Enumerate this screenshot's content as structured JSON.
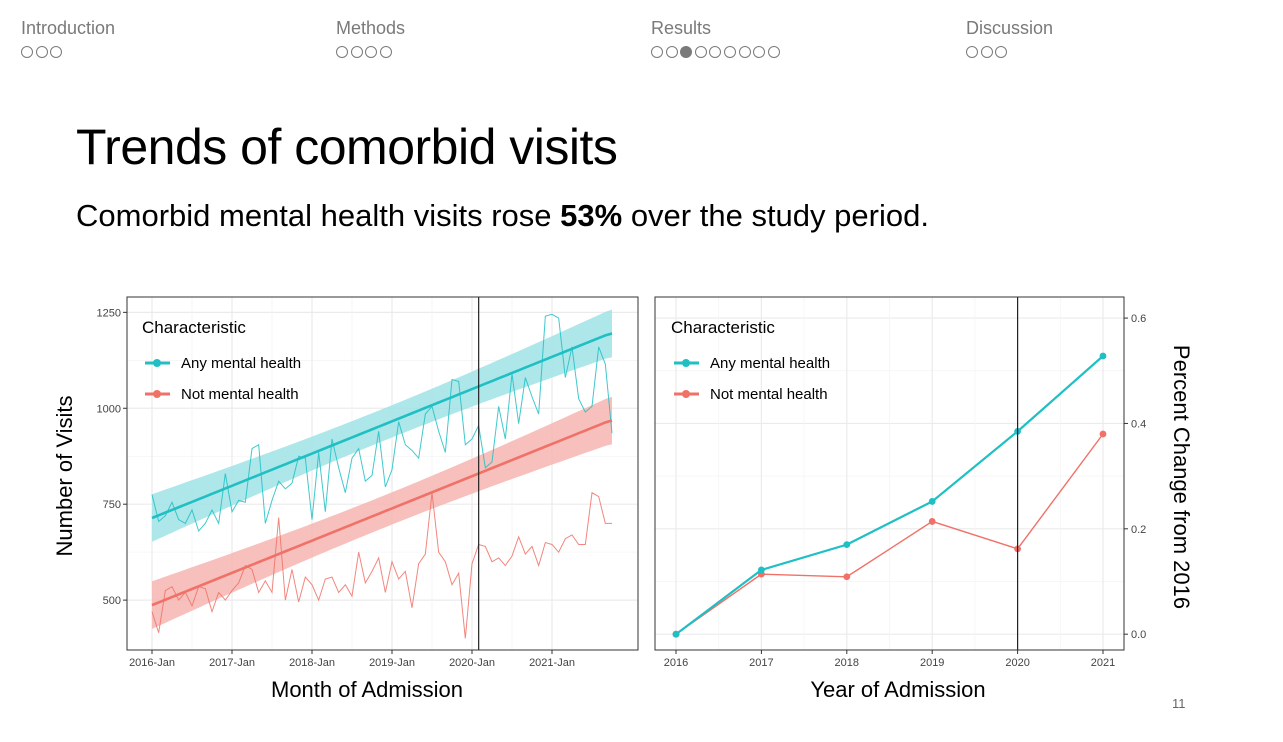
{
  "nav": [
    {
      "label": "Introduction",
      "dots": 3,
      "active": -1
    },
    {
      "label": "Methods",
      "dots": 4,
      "active": -1
    },
    {
      "label": "Results",
      "dots": 9,
      "active": 2
    },
    {
      "label": "Discussion",
      "dots": 3,
      "active": -1
    }
  ],
  "slide": {
    "title": "Trends of comorbid visits",
    "subtitle_pre": "Comorbid mental health visits rose ",
    "subtitle_bold": "53%",
    "subtitle_post": " over the study period.",
    "page_number": "11"
  },
  "colors": {
    "any": "#1fbfc4",
    "not": "#f07167",
    "ribbon_any": "#9fe3e5",
    "ribbon_not": "#f6b5b0",
    "grid": "#ebebeb",
    "frame": "#333333"
  },
  "chart_data": [
    {
      "type": "line",
      "title": "",
      "xlabel": "Month of Admission",
      "ylabel": "Number of Visits",
      "legend_title": "Characteristic",
      "legend_position": "top-left",
      "x_tick_labels": [
        "2016-Jan",
        "2017-Jan",
        "2018-Jan",
        "2019-Jan",
        "2020-Jan",
        "2021-Jan"
      ],
      "y_ticks": [
        500,
        750,
        1000,
        1250
      ],
      "xlim": [
        0,
        71
      ],
      "ylim": [
        370,
        1290
      ],
      "vline_month": 49,
      "series": [
        {
          "name": "Any mental health",
          "values": [
            775,
            705,
            720,
            755,
            710,
            700,
            735,
            680,
            700,
            735,
            700,
            830,
            730,
            760,
            755,
            895,
            905,
            700,
            760,
            810,
            790,
            805,
            875,
            870,
            710,
            885,
            730,
            920,
            845,
            780,
            870,
            895,
            810,
            825,
            940,
            795,
            840,
            965,
            905,
            890,
            870,
            985,
            1005,
            940,
            885,
            1075,
            1070,
            905,
            920,
            955,
            845,
            860,
            1005,
            920,
            1090,
            960,
            1080,
            1030,
            985,
            1240,
            1245,
            1235,
            1080,
            1160,
            1025,
            990,
            1005,
            1160,
            1115,
            935
          ],
          "smooth": [
            714,
            721,
            728,
            735,
            742,
            749,
            756,
            763,
            770,
            777,
            784,
            791,
            798,
            805,
            812,
            819,
            826,
            833,
            840,
            847,
            854,
            861,
            868,
            875,
            882,
            889,
            896,
            903,
            910,
            917,
            924,
            931,
            938,
            945,
            952,
            959,
            966,
            973,
            980,
            987,
            994,
            1001,
            1008,
            1015,
            1022,
            1029,
            1036,
            1043,
            1050,
            1057,
            1064,
            1071,
            1078,
            1085,
            1092,
            1099,
            1106,
            1113,
            1120,
            1127,
            1134,
            1141,
            1148,
            1155,
            1162,
            1169,
            1176,
            1183,
            1190,
            1195
          ]
        },
        {
          "name": "Not mental health",
          "values": [
            470,
            415,
            525,
            535,
            500,
            520,
            485,
            535,
            530,
            470,
            520,
            500,
            525,
            545,
            590,
            580,
            520,
            550,
            520,
            715,
            500,
            580,
            495,
            560,
            540,
            500,
            555,
            560,
            520,
            540,
            510,
            625,
            545,
            575,
            610,
            520,
            600,
            555,
            575,
            480,
            595,
            620,
            780,
            625,
            600,
            540,
            570,
            400,
            595,
            645,
            640,
            600,
            610,
            590,
            615,
            665,
            620,
            640,
            590,
            650,
            645,
            625,
            660,
            670,
            645,
            645,
            780,
            770,
            700,
            700
          ],
          "smooth": [
            487,
            494,
            501,
            508,
            515,
            522,
            529,
            536,
            543,
            550,
            557,
            564,
            571,
            578,
            585,
            592,
            599,
            606,
            613,
            620,
            627,
            634,
            641,
            648,
            655,
            662,
            669,
            676,
            683,
            690,
            697,
            704,
            711,
            718,
            725,
            732,
            739,
            746,
            753,
            760,
            767,
            774,
            781,
            788,
            795,
            802,
            809,
            816,
            823,
            830,
            837,
            844,
            851,
            858,
            865,
            872,
            879,
            886,
            893,
            900,
            907,
            914,
            921,
            928,
            935,
            942,
            949,
            956,
            963,
            968
          ]
        }
      ]
    },
    {
      "type": "line",
      "title": "",
      "xlabel": "Year of Admission",
      "ylabel": "Percent Change from 2016",
      "legend_title": "Characteristic",
      "legend_position": "top-left",
      "x": [
        2016,
        2017,
        2018,
        2019,
        2020,
        2021
      ],
      "y_ticks": [
        0.0,
        0.2,
        0.4,
        0.6
      ],
      "y_tick_labels": [
        "0.0",
        "0.2",
        "0.4",
        "0.6"
      ],
      "ylim": [
        -0.03,
        0.64
      ],
      "y_axis_side": "right",
      "vline_x": 2020,
      "series": [
        {
          "name": "Any mental health",
          "values": [
            0.0,
            0.122,
            0.17,
            0.252,
            0.385,
            0.528
          ]
        },
        {
          "name": "Not mental health",
          "values": [
            0.0,
            0.114,
            0.109,
            0.214,
            0.162,
            0.38
          ]
        }
      ]
    }
  ]
}
